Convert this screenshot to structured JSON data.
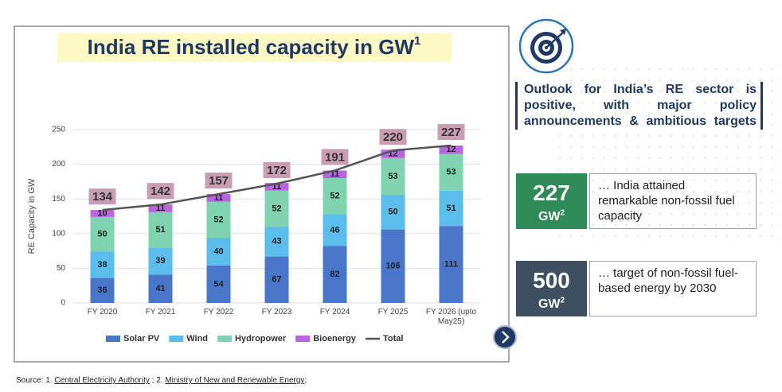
{
  "chart_data": {
    "type": "bar",
    "stacked": true,
    "title": "India RE installed capacity in GW",
    "title_note": "1",
    "y_label": "RE Capacity  in GW",
    "categories": [
      "FY 2020",
      "FY 2021",
      "FY 2022",
      "FY 2023",
      "FY 2024",
      "FY 2025",
      "FY 2026 (upto May25)"
    ],
    "series": [
      {
        "name": "Solar PV",
        "color": "#4a76c9",
        "values": [
          36,
          41,
          54,
          67,
          82,
          106,
          111
        ]
      },
      {
        "name": "Wind",
        "color": "#5bbdec",
        "values": [
          38,
          39,
          40,
          43,
          46,
          50,
          51
        ]
      },
      {
        "name": "Hydropower",
        "color": "#7fd3b1",
        "values": [
          50,
          51,
          52,
          52,
          52,
          53,
          53
        ]
      },
      {
        "name": "Bioenergy",
        "color": "#b865e0",
        "values": [
          10,
          11,
          11,
          11,
          11,
          12,
          12
        ]
      },
      {
        "name": "Total",
        "color": "#555555",
        "type": "line",
        "label_color": "#c99db2",
        "values": [
          134,
          142,
          157,
          172,
          191,
          220,
          227
        ]
      }
    ],
    "ylim": [
      0,
      250
    ],
    "yticks": [
      0,
      50,
      100,
      150,
      200,
      250
    ],
    "grid": true,
    "legend": "bottom"
  },
  "outlook": "Outlook for India’s RE sector is positive, with major policy announcements & ambitious targets",
  "highlights": [
    {
      "value": 227,
      "unit": "GW",
      "note": "2",
      "text": "… India attained remarkable non-fossil fuel capacity"
    },
    {
      "value": 500,
      "unit": "GW",
      "note": "2",
      "text": "… target of non-fossil fuel-based energy by 2030"
    }
  ],
  "source": {
    "prefix": "Source: 1.",
    "links": [
      "Central Electricity Authority",
      "Ministry of New and Renewable Energy"
    ],
    "separator": " ; 2.",
    "suffix": ";"
  }
}
